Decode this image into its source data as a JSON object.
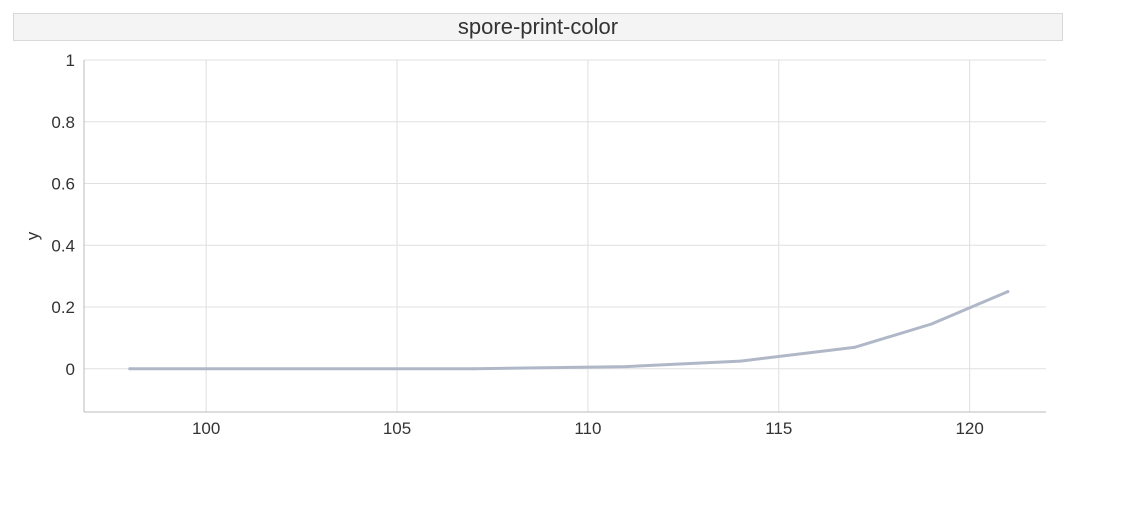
{
  "chart_data": {
    "type": "line",
    "title": "spore-print-color",
    "xlabel": "",
    "ylabel": "y",
    "xlim": [
      96.8,
      122
    ],
    "ylim": [
      -0.14,
      1
    ],
    "xticks": [
      100,
      105,
      110,
      115,
      120
    ],
    "yticks": [
      0,
      0.2,
      0.4,
      0.6,
      0.8,
      1
    ],
    "grid": true,
    "series": [
      {
        "x": [
          98,
          107,
          111,
          114,
          117,
          119,
          121
        ],
        "y": [
          0,
          0,
          0.007,
          0.025,
          0.07,
          0.145,
          0.25
        ]
      }
    ],
    "colors": {
      "line": "#b0b8c8",
      "grid": "#e0e0e0",
      "axis": "#bbbbbb",
      "text": "#333333"
    }
  }
}
